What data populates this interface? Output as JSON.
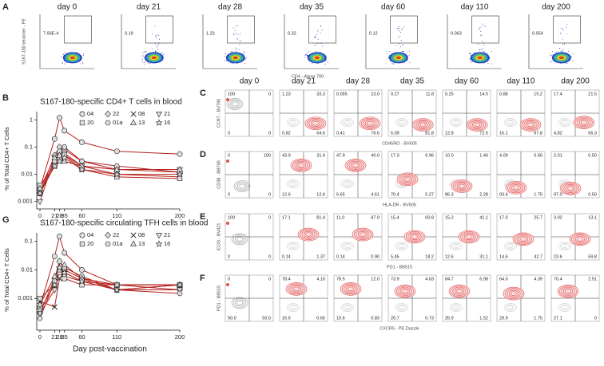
{
  "panel_a": {
    "label": "A",
    "y_axis": "S167-180 tetramer - PE",
    "x_axis": "CD4 - Alexa 700",
    "plots": [
      {
        "day": "day 0",
        "gate": "7.93E-4"
      },
      {
        "day": "day 21",
        "gate": "0.19"
      },
      {
        "day": "day 28",
        "gate": "1.23"
      },
      {
        "day": "day 35",
        "gate": "0.32"
      },
      {
        "day": "day 60",
        "gate": "0.12"
      },
      {
        "day": "day 110",
        "gate": "0.063"
      },
      {
        "day": "day 200",
        "gate": "0.054"
      }
    ]
  },
  "chart_data": [
    {
      "type": "line",
      "panel": "B",
      "title": "S167-180-specific CD4+ T cells in blood",
      "y_label": "% of Total CD4+ T Cells",
      "x": [
        0,
        21,
        28,
        35,
        60,
        110,
        200
      ],
      "xlim": [
        0,
        200
      ],
      "xticks": [
        0,
        21,
        28,
        35,
        60,
        110,
        200
      ],
      "ylim": [
        0.0007,
        2
      ],
      "yticks": [
        0.001,
        0.01,
        0.1,
        1
      ],
      "log_y": true,
      "legend": "top-right",
      "series": [
        {
          "name": "04",
          "color": "#b3201c",
          "marker": "circle",
          "values": [
            0.003,
            0.2,
            1.2,
            0.4,
            0.15,
            0.07,
            0.055
          ]
        },
        {
          "name": "22",
          "color": "#b3201c",
          "marker": "diamond",
          "values": [
            0.002,
            0.05,
            0.1,
            0.08,
            0.03,
            0.015,
            0.012
          ]
        },
        {
          "name": "08",
          "color": "#b3201c",
          "marker": "x",
          "values": [
            0.002,
            0.03,
            0.06,
            0.05,
            0.02,
            0.01,
            0.008
          ]
        },
        {
          "name": "21",
          "color": "#b3201c",
          "marker": "triangle-down",
          "values": [
            0.001,
            0.04,
            0.05,
            0.06,
            0.02,
            0.015,
            0.015
          ]
        },
        {
          "name": "20",
          "color": "#b3201c",
          "marker": "square",
          "values": [
            0.004,
            0.02,
            0.04,
            0.05,
            0.015,
            0.008,
            0.007
          ]
        },
        {
          "name": "01a",
          "color": "#b3201c",
          "marker": "hexagon",
          "values": [
            0.002,
            0.03,
            0.07,
            0.1,
            0.03,
            0.02,
            0.012
          ]
        },
        {
          "name": "13",
          "color": "#b3201c",
          "marker": "triangle-up",
          "values": [
            0.003,
            0.04,
            0.05,
            0.03,
            0.02,
            0.015,
            0.015
          ]
        },
        {
          "name": "16",
          "color": "#b3201c",
          "marker": "star",
          "values": [
            0.002,
            0.02,
            0.03,
            0.04,
            0.015,
            0.01,
            0.01
          ]
        }
      ]
    },
    {
      "type": "line",
      "panel": "G",
      "title": "S167-180-specific circulating TFH cells in blood",
      "y_label": "% of Total CD4+ T Cells",
      "x_label": "Day post-vaccination",
      "x": [
        0,
        21,
        28,
        35,
        60,
        110,
        200
      ],
      "xlim": [
        0,
        200
      ],
      "xticks": [
        0,
        21,
        28,
        35,
        60,
        110,
        200
      ],
      "ylim": [
        0.0001,
        0.2
      ],
      "yticks": [
        0.001,
        0.01,
        0.1
      ],
      "log_y": true,
      "legend": "top-right",
      "series": [
        {
          "name": "04",
          "color": "#b3201c",
          "marker": "circle",
          "values": [
            0.0005,
            0.03,
            0.15,
            0.04,
            0.01,
            0.003,
            0.003
          ]
        },
        {
          "name": "22",
          "color": "#b3201c",
          "marker": "diamond",
          "values": [
            0.0003,
            0.005,
            0.02,
            0.01,
            0.005,
            0.002,
            0.002
          ]
        },
        {
          "name": "08",
          "color": "#b3201c",
          "marker": "x",
          "values": [
            0.0008,
            0.0005,
            0.005,
            0.008,
            0.004,
            0.002,
            0.003
          ]
        },
        {
          "name": "21",
          "color": "#b3201c",
          "marker": "triangle-down",
          "values": [
            0.0003,
            0.002,
            0.01,
            0.006,
            0.004,
            0.003,
            0.002
          ]
        },
        {
          "name": "20",
          "color": "#b3201c",
          "marker": "square",
          "values": [
            0.001,
            0.003,
            0.008,
            0.005,
            0.003,
            0.003,
            0.003
          ]
        },
        {
          "name": "01a",
          "color": "#b3201c",
          "marker": "hexagon",
          "values": [
            0.0002,
            0.004,
            0.02,
            0.012,
            0.006,
            0.002,
            0.0015
          ]
        },
        {
          "name": "13",
          "color": "#b3201c",
          "marker": "triangle-up",
          "values": [
            0.0006,
            0.006,
            0.01,
            0.015,
            0.005,
            0.003,
            0.003
          ]
        },
        {
          "name": "16",
          "color": "#b3201c",
          "marker": "star",
          "values": [
            0.0004,
            0.003,
            0.012,
            0.008,
            0.004,
            0.002,
            0.003
          ]
        }
      ]
    }
  ],
  "flow_grid": {
    "days": [
      "day 0",
      "day 21",
      "day 28",
      "day 35",
      "day 60",
      "day 110",
      "day 200"
    ],
    "rows": [
      {
        "label": "C",
        "y_axis": "CCR7 - BV785",
        "x_axis": "CD45RO - BV605",
        "quadrants": [
          [
            "100",
            "0",
            "0",
            "0"
          ],
          [
            "1.23",
            "33.3",
            "0.82",
            "64.6"
          ],
          [
            "0.055",
            "23.0",
            "0.41",
            "76.6"
          ],
          [
            "0.27",
            "11.8",
            "6.09",
            "81.8"
          ],
          [
            "0.25",
            "14.5",
            "12.8",
            "72.5"
          ],
          [
            "0.88",
            "15.2",
            "16.1",
            "67.8"
          ],
          [
            "17.4",
            "21.5",
            "4.82",
            "56.3"
          ]
        ]
      },
      {
        "label": "D",
        "y_axis": "CD38 - BB700",
        "x_axis": "HLA-DR - BV605",
        "quadrants": [
          [
            "0",
            "100",
            "0",
            "0"
          ],
          [
            "43.9",
            "31.6",
            "12.6",
            "12.6"
          ],
          [
            "47.9",
            "40.0",
            "6.65",
            "4.61"
          ],
          [
            "17.3",
            "6.96",
            "70.4",
            "5.27"
          ],
          [
            "10.0",
            "1.40",
            "86.3",
            "2.28"
          ],
          [
            "4.09",
            "0.56",
            "93.6",
            "1.75"
          ],
          [
            "2.01",
            "0.50",
            "97.0",
            "0.50"
          ]
        ]
      },
      {
        "label": "E",
        "y_axis": "ICOS - BV421",
        "x_axis": "PD1 - BB515",
        "quadrants": [
          [
            "100",
            "0",
            "0",
            "0"
          ],
          [
            "17.1",
            "81.4",
            "0.14",
            "1.37"
          ],
          [
            "11.0",
            "87.9",
            "0.14",
            "0.90"
          ],
          [
            "15.4",
            "60.8",
            "5.45",
            "18.2"
          ],
          [
            "15.2",
            "41.1",
            "12.6",
            "31.1"
          ],
          [
            "17.0",
            "25.7",
            "14.6",
            "42.7"
          ],
          [
            "3.92",
            "13.1",
            "23.6",
            "59.8"
          ]
        ]
      },
      {
        "label": "F",
        "y_axis": "PD1 - BB515",
        "x_axis": "CXCR5 - PE-Dazzle",
        "quadrants": [
          [
            "0",
            "0",
            "50.0",
            "50.0"
          ],
          [
            "78.4",
            "4.10",
            "16.9",
            "0.65"
          ],
          [
            "78.5",
            "12.0",
            "10.6",
            "0.83"
          ],
          [
            "73.9",
            "4.63",
            "20.7",
            "0.73"
          ],
          [
            "84.7",
            "6.98",
            "26.9",
            "1.52"
          ],
          [
            "64.0",
            "4.39",
            "29.9",
            "1.75"
          ],
          [
            "70.4",
            "2.51",
            "27.1",
            "0"
          ]
        ]
      }
    ]
  }
}
